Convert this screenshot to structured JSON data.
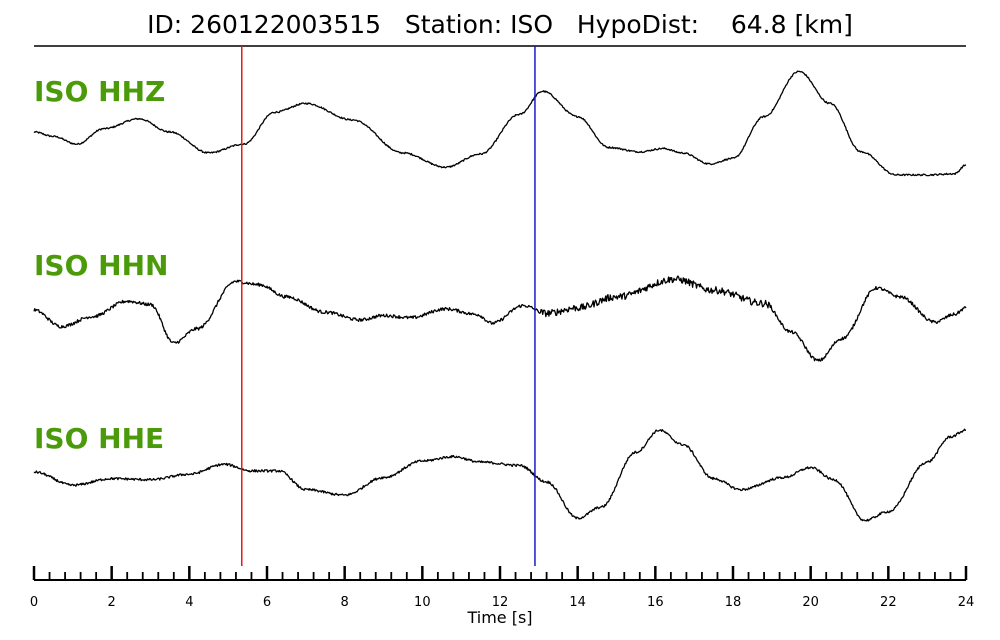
{
  "title": "ID: 260122003515   Station: ISO   HypoDist:    64.8 [km]",
  "label_color": "#4a9a0a",
  "chart_data": {
    "type": "line",
    "xlabel": "Time [s]",
    "xlim": [
      0,
      24
    ],
    "x_tick_labels": [
      "0",
      "2",
      "4",
      "6",
      "8",
      "10",
      "12",
      "14",
      "16",
      "18",
      "20",
      "22",
      "24"
    ],
    "minor_tick_step": 0.4,
    "p_pick_time": 5.35,
    "p_pick_color": "#e8191a",
    "s_pick_time": 12.9,
    "s_pick_color": "#1a1acc",
    "series": [
      {
        "name": "ISO HHZ",
        "noise": 0.6,
        "keypoints": [
          [
            0.0,
            0.0
          ],
          [
            0.5,
            -0.2
          ],
          [
            1.1,
            -0.55
          ],
          [
            1.8,
            0.15
          ],
          [
            2.7,
            0.6
          ],
          [
            3.5,
            0.0
          ],
          [
            4.5,
            -0.95
          ],
          [
            5.4,
            -0.55
          ],
          [
            6.2,
            0.9
          ],
          [
            7.0,
            1.3
          ],
          [
            8.2,
            0.55
          ],
          [
            9.5,
            -0.95
          ],
          [
            10.6,
            -1.6
          ],
          [
            11.5,
            -1.0
          ],
          [
            12.5,
            0.8
          ],
          [
            13.1,
            1.85
          ],
          [
            14.0,
            0.7
          ],
          [
            14.8,
            -0.7
          ],
          [
            15.6,
            -0.9
          ],
          [
            16.2,
            -0.75
          ],
          [
            16.7,
            -0.95
          ],
          [
            17.4,
            -1.45
          ],
          [
            18.0,
            -1.2
          ],
          [
            18.8,
            0.7
          ],
          [
            19.7,
            2.75
          ],
          [
            20.5,
            1.3
          ],
          [
            21.3,
            -0.9
          ],
          [
            22.2,
            -1.95
          ],
          [
            23.0,
            -1.95
          ],
          [
            23.7,
            -1.9
          ],
          [
            24.0,
            -1.5
          ]
        ]
      },
      {
        "name": "ISO HHN",
        "noise": 1.2,
        "keypoints": [
          [
            0.0,
            0.0
          ],
          [
            0.7,
            -0.75
          ],
          [
            1.5,
            -0.3
          ],
          [
            2.4,
            0.4
          ],
          [
            3.0,
            0.25
          ],
          [
            3.6,
            -1.5
          ],
          [
            4.2,
            -0.85
          ],
          [
            5.2,
            1.3
          ],
          [
            5.8,
            1.15
          ],
          [
            6.5,
            0.6
          ],
          [
            7.5,
            -0.1
          ],
          [
            8.4,
            -0.45
          ],
          [
            9.0,
            -0.25
          ],
          [
            9.7,
            -0.35
          ],
          [
            10.6,
            0.05
          ],
          [
            11.4,
            -0.2
          ],
          [
            11.8,
            -0.6
          ],
          [
            12.6,
            0.2
          ],
          [
            13.2,
            -0.15
          ],
          [
            14.0,
            0.1
          ],
          [
            15.0,
            0.6
          ],
          [
            16.5,
            1.4
          ],
          [
            17.5,
            0.9
          ],
          [
            18.8,
            0.3
          ],
          [
            19.5,
            -1.0
          ],
          [
            20.2,
            -2.3
          ],
          [
            20.8,
            -1.3
          ],
          [
            21.7,
            1.0
          ],
          [
            22.3,
            0.6
          ],
          [
            23.2,
            -0.55
          ],
          [
            23.7,
            -0.2
          ],
          [
            24.0,
            0.1
          ]
        ]
      },
      {
        "name": "ISO HHE",
        "noise": 0.9,
        "keypoints": [
          [
            0.0,
            0.0
          ],
          [
            1.0,
            -0.6
          ],
          [
            2.0,
            -0.3
          ],
          [
            3.0,
            -0.35
          ],
          [
            4.0,
            -0.1
          ],
          [
            4.9,
            0.35
          ],
          [
            5.6,
            0.05
          ],
          [
            6.3,
            0.05
          ],
          [
            7.0,
            -0.8
          ],
          [
            8.0,
            -1.05
          ],
          [
            9.0,
            -0.25
          ],
          [
            10.0,
            0.5
          ],
          [
            10.8,
            0.7
          ],
          [
            11.5,
            0.45
          ],
          [
            12.5,
            0.3
          ],
          [
            13.2,
            -0.45
          ],
          [
            14.0,
            -2.1
          ],
          [
            14.6,
            -1.6
          ],
          [
            15.5,
            0.9
          ],
          [
            16.1,
            1.9
          ],
          [
            16.7,
            1.25
          ],
          [
            17.5,
            -0.3
          ],
          [
            18.2,
            -0.8
          ],
          [
            19.3,
            -0.25
          ],
          [
            20.0,
            0.2
          ],
          [
            20.6,
            -0.35
          ],
          [
            21.4,
            -2.2
          ],
          [
            22.0,
            -1.8
          ],
          [
            23.0,
            0.45
          ],
          [
            23.6,
            1.6
          ],
          [
            24.0,
            1.9
          ]
        ]
      }
    ]
  }
}
